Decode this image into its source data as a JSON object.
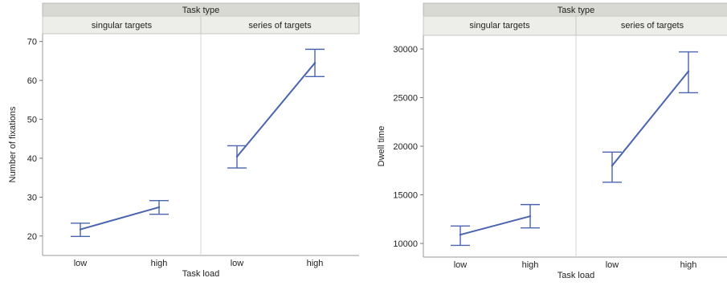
{
  "chart_data": [
    {
      "type": "line",
      "facet_title": "Task type",
      "panels": [
        "singular targets",
        "series of targets"
      ],
      "categories": [
        "low",
        "high"
      ],
      "xlabel": "Task load",
      "ylabel": "Number of fixations",
      "ylim": [
        15,
        72
      ],
      "yticks": [
        "20",
        "30",
        "40",
        "50",
        "60",
        "70"
      ],
      "series": [
        {
          "panel": "singular targets",
          "values": [
            21.7,
            27.4
          ],
          "err_low": [
            19.9,
            25.6
          ],
          "err_high": [
            23.3,
            29.1
          ]
        },
        {
          "panel": "series of targets",
          "values": [
            40.4,
            64.5
          ],
          "err_low": [
            37.5,
            61.0
          ],
          "err_high": [
            43.2,
            68.0
          ]
        }
      ],
      "grid": false,
      "color": "#4a64ad"
    },
    {
      "type": "line",
      "facet_title": "Task type",
      "panels": [
        "singular targets",
        "series of targets"
      ],
      "categories": [
        "low",
        "high"
      ],
      "xlabel": "Task load",
      "ylabel": "Dwell time",
      "ylim": [
        8600,
        31400
      ],
      "yticks": [
        "10000",
        "15000",
        "20000",
        "25000",
        "30000"
      ],
      "series": [
        {
          "panel": "singular targets",
          "values": [
            10900,
            12800
          ],
          "err_low": [
            9800,
            11600
          ],
          "err_high": [
            11800,
            14000
          ]
        },
        {
          "panel": "series of targets",
          "values": [
            18000,
            27700
          ],
          "err_low": [
            16300,
            25500
          ],
          "err_high": [
            19400,
            29700
          ]
        }
      ],
      "grid": false,
      "color": "#4a64ad"
    }
  ]
}
